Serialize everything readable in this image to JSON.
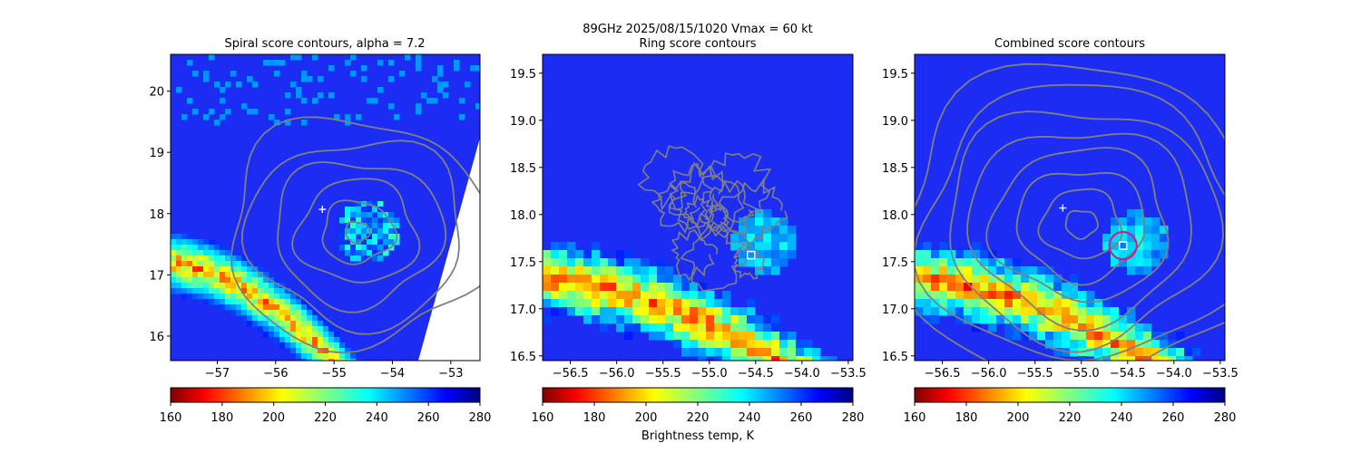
{
  "figure": {
    "suptitle_line1": "89GHz  2025/08/15/1020    Vmax = 60 kt",
    "colorbar_label": "Brightness temp, K"
  },
  "colors": {
    "contour": "#808080",
    "marker": "#ffffff",
    "circle": "#c8208c"
  },
  "colorbar": {
    "colormap": "jet_r",
    "vmin": 160,
    "vmax": 280,
    "ticks": [
      "160",
      "180",
      "200",
      "220",
      "240",
      "260",
      "280"
    ]
  },
  "chart_data": [
    {
      "type": "heatmap",
      "title": "Spiral score contours, alpha =  7.2",
      "xlim": [
        -57.8,
        -52.5
      ],
      "ylim": [
        15.6,
        20.6
      ],
      "xticks": [
        "-57",
        "-56",
        "-55",
        "-54",
        "-53"
      ],
      "yticks": [
        "16",
        "17",
        "18",
        "19",
        "20"
      ],
      "swath_edge": true,
      "cross_marker": {
        "lon": -55.2,
        "lat": 18.07
      },
      "contour_center": {
        "lon": -54.6,
        "lat": 17.7
      },
      "contour_levels": 6
    },
    {
      "type": "heatmap",
      "title": "Ring score contours",
      "xlim": [
        -56.8,
        -53.45
      ],
      "ylim": [
        16.45,
        19.7
      ],
      "xticks": [
        "-56.5",
        "-56.0",
        "-55.5",
        "-55.0",
        "-54.5",
        "-54.0",
        "-53.5"
      ],
      "yticks": [
        "16.5",
        "17.0",
        "17.5",
        "18.0",
        "18.5",
        "19.0",
        "19.5"
      ],
      "square_marker": {
        "lon": -54.55,
        "lat": 17.57
      },
      "contour_center": {
        "lon": -54.95,
        "lat": 17.95
      }
    },
    {
      "type": "heatmap",
      "title": "Combined score contours",
      "xlim": [
        -56.8,
        -53.45
      ],
      "ylim": [
        16.45,
        19.7
      ],
      "xticks": [
        "-56.5",
        "-56.0",
        "-55.5",
        "-55.0",
        "-54.5",
        "-54.0",
        "-53.5"
      ],
      "yticks": [
        "16.5",
        "17.0",
        "17.5",
        "18.0",
        "18.5",
        "19.0",
        "19.5"
      ],
      "cross_marker": {
        "lon": -55.2,
        "lat": 18.07
      },
      "square_marker": {
        "lon": -54.55,
        "lat": 17.67
      },
      "circle_center": {
        "lon": -54.55,
        "lat": 17.67
      },
      "contour_center": {
        "lon": -55.0,
        "lat": 17.9
      },
      "contour_levels": 8
    }
  ]
}
